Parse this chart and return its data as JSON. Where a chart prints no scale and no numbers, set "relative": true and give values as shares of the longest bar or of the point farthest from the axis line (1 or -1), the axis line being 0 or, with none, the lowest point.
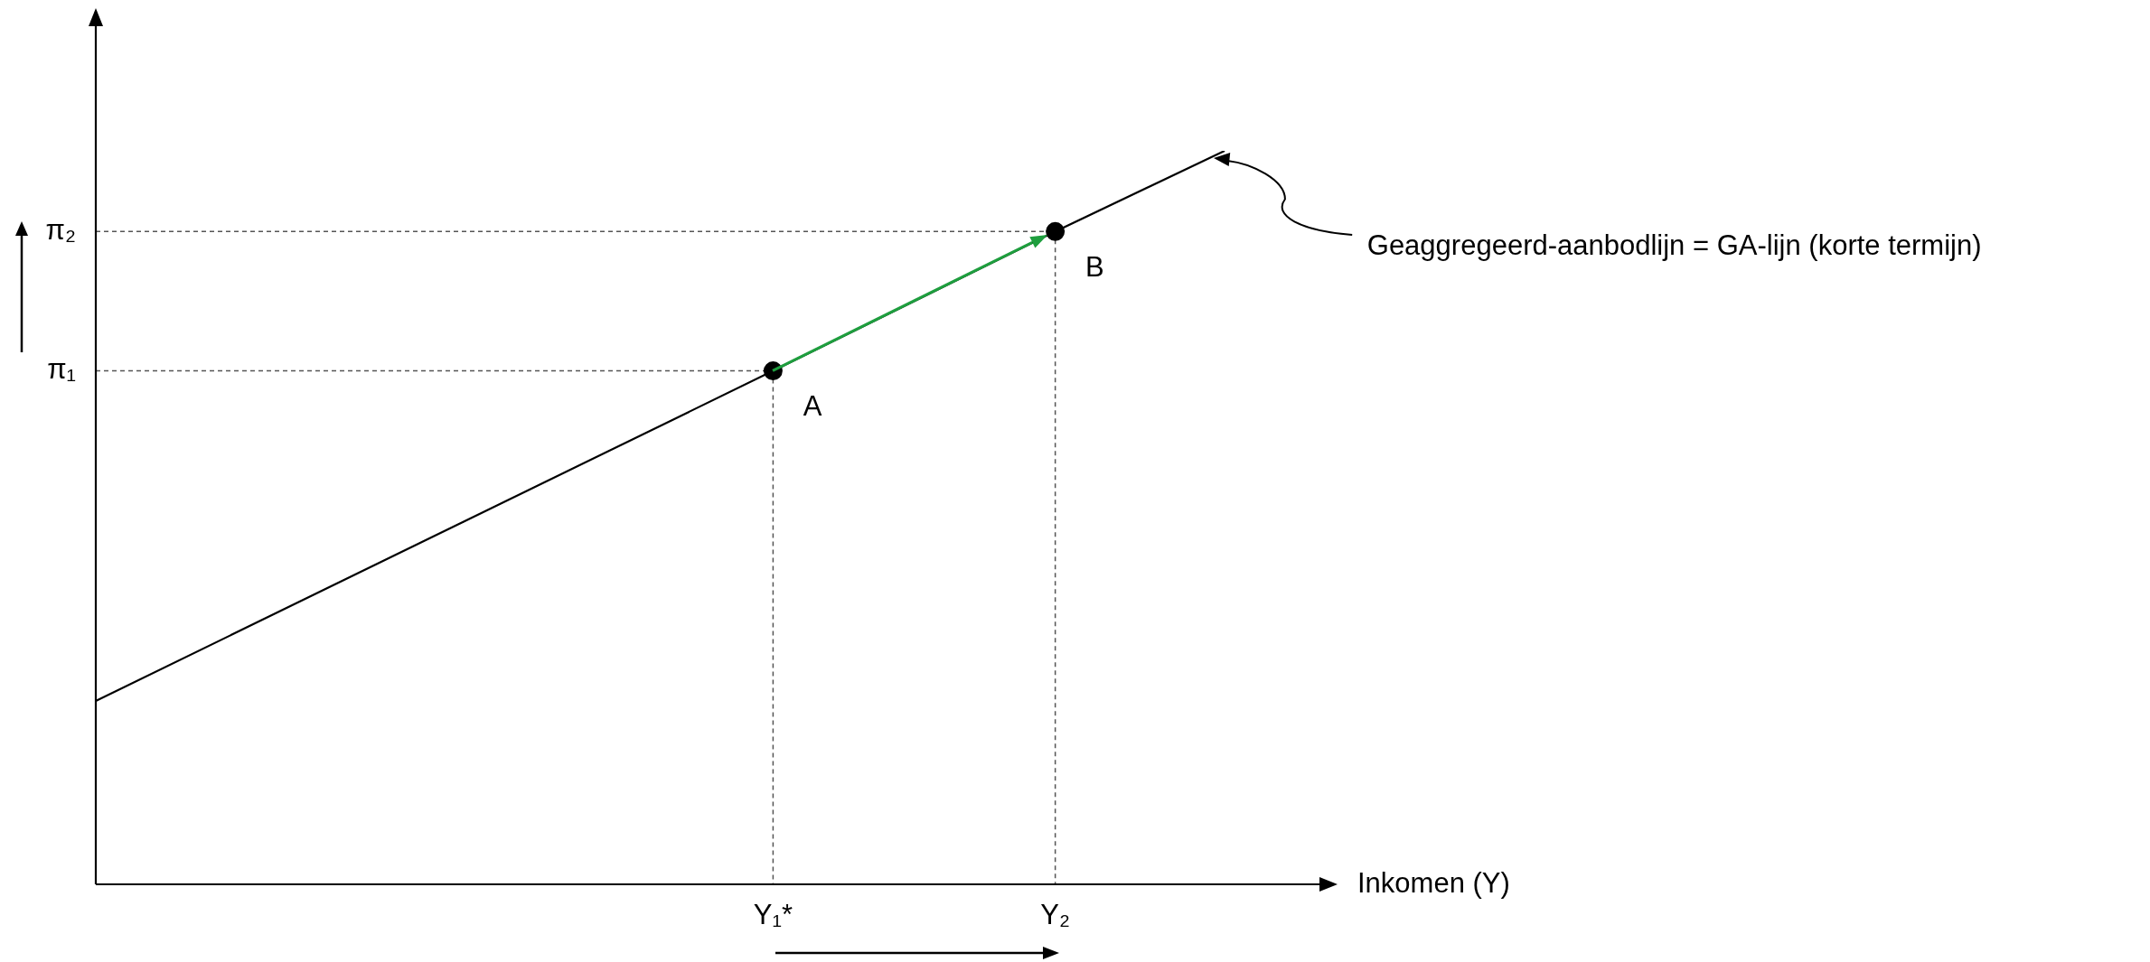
{
  "chart_data": {
    "type": "line",
    "relative": true,
    "xlabel": "Inkomen (Y)",
    "categories": [
      null,
      null,
      null,
      null,
      null,
      null,
      null,
      null,
      null,
      null,
      null,
      null,
      "Y₁*",
      null,
      null,
      null,
      null,
      "Y₂",
      null,
      null,
      null
    ],
    "series": [
      {
        "type": "line",
        "color": "#000000",
        "values": [
          0.25,
          null,
          null,
          null,
          null,
          null,
          null,
          null,
          null,
          null,
          null,
          null,
          0.7,
          null,
          null,
          null,
          null,
          0.89,
          null,
          null,
          1
        ],
        "marker": "none"
      },
      {
        "type": "scatter",
        "color": "#000000",
        "values": [
          null,
          null,
          null,
          null,
          null,
          null,
          null,
          null,
          null,
          null,
          null,
          null,
          0.7,
          null,
          null,
          null,
          null,
          0.89,
          null,
          null,
          null
        ],
        "marker": "circle"
      }
    ],
    "annotations": [
      {
        "text": "A",
        "x": "Y₁*",
        "y": 0.7
      },
      {
        "text": "B",
        "x": "Y₂",
        "y": 0.89
      },
      "π₁",
      "π₂",
      "Geaggregeerd-aanbodlijn = GA-lijn (korte termijn)"
    ],
    "legend": false
  }
}
